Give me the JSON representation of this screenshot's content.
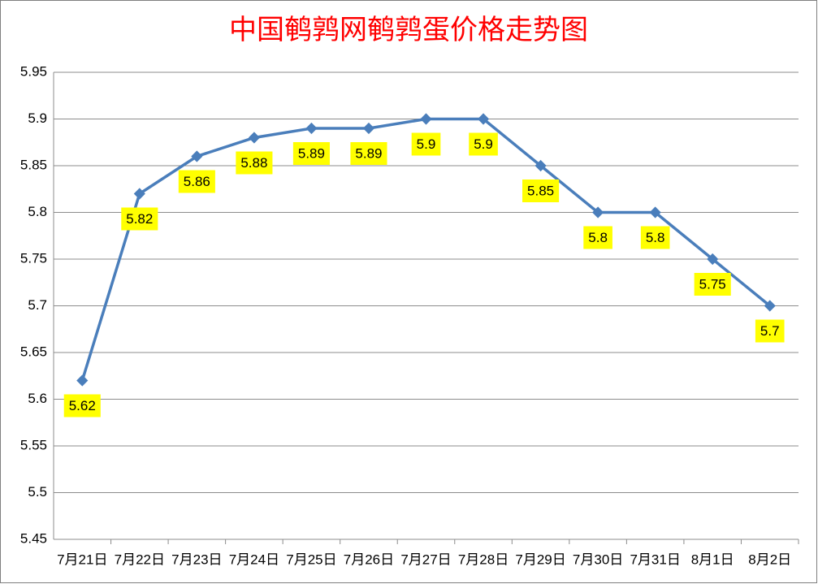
{
  "chart_data": {
    "type": "line",
    "title": "中国鹌鹑网鹌鹑蛋价格走势图",
    "categories": [
      "7月21日",
      "7月22日",
      "7月23日",
      "7月24日",
      "7月25日",
      "7月26日",
      "7月27日",
      "7月28日",
      "7月29日",
      "7月30日",
      "7月31日",
      "8月1日",
      "8月2日"
    ],
    "values": [
      5.62,
      5.82,
      5.86,
      5.88,
      5.89,
      5.89,
      5.9,
      5.9,
      5.85,
      5.8,
      5.8,
      5.75,
      5.7
    ],
    "color": "#4a7ebb",
    "label_color": "#ffff00",
    "ylim": [
      5.45,
      5.95
    ],
    "yticks": [
      5.45,
      5.5,
      5.55,
      5.6,
      5.65,
      5.7,
      5.75,
      5.8,
      5.85,
      5.9,
      5.95
    ],
    "grid": true
  }
}
